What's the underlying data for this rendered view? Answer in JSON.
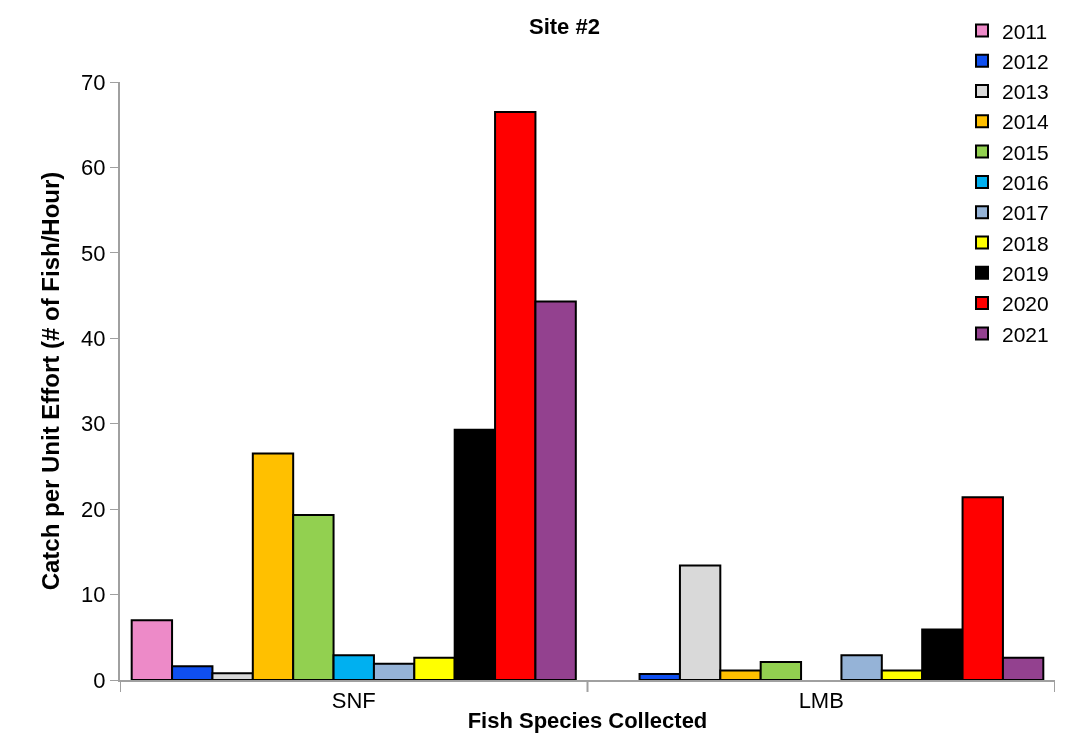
{
  "chart_data": {
    "type": "bar",
    "title": "Site #2",
    "xlabel": "Fish Species Collected",
    "ylabel": "Catch per Unit Effort (# of Fish/Hour)",
    "categories": [
      "SNF",
      "LMB"
    ],
    "series": [
      {
        "name": "2011",
        "color": "#ed8ac8",
        "values": [
          7.0,
          null
        ]
      },
      {
        "name": "2012",
        "color": "#0f4ff0",
        "values": [
          1.6,
          0.7
        ]
      },
      {
        "name": "2013",
        "color": "#d9d9d9",
        "values": [
          0.8,
          13.4
        ]
      },
      {
        "name": "2014",
        "color": "#ffc000",
        "values": [
          26.5,
          1.1
        ]
      },
      {
        "name": "2015",
        "color": "#92d050",
        "values": [
          19.3,
          2.1
        ]
      },
      {
        "name": "2016",
        "color": "#00b0f0",
        "values": [
          2.9,
          null
        ]
      },
      {
        "name": "2017",
        "color": "#95b3d7",
        "values": [
          1.9,
          2.9
        ]
      },
      {
        "name": "2018",
        "color": "#ffff00",
        "values": [
          2.6,
          1.1
        ]
      },
      {
        "name": "2019",
        "color": "#000000",
        "values": [
          29.3,
          5.9
        ]
      },
      {
        "name": "2020",
        "color": "#ff0000",
        "values": [
          66.5,
          21.4
        ]
      },
      {
        "name": "2021",
        "color": "#93418f",
        "values": [
          44.3,
          2.6
        ]
      }
    ],
    "ylim": [
      0,
      70
    ],
    "yticks": [
      0,
      10,
      20,
      30,
      40,
      50,
      60,
      70
    ],
    "legend": "top right"
  }
}
